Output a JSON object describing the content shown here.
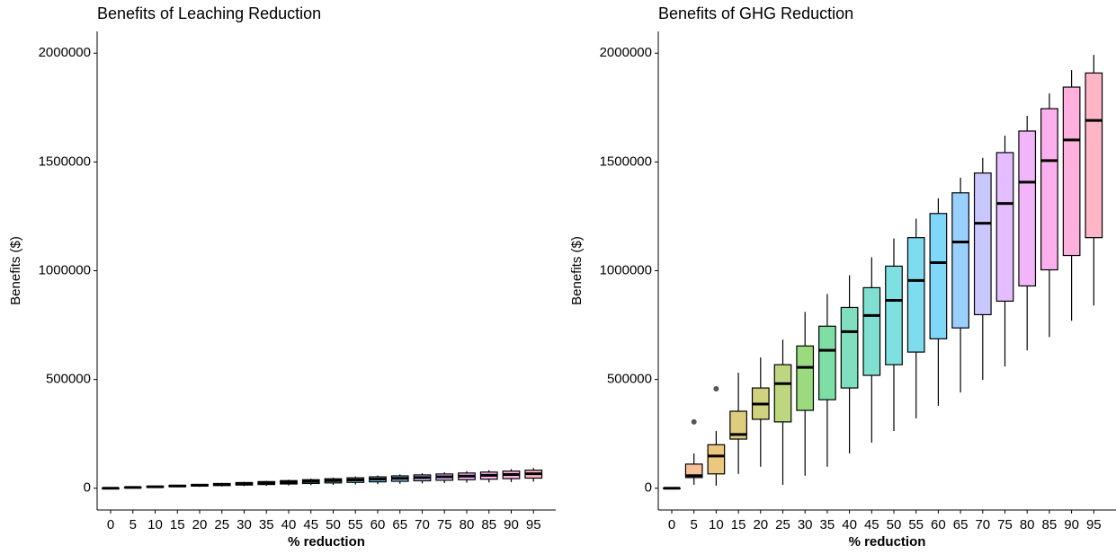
{
  "chart_data": [
    {
      "type": "box",
      "title": "Benefits of Leaching Reduction",
      "x_label": "% reduction",
      "y_label": "Benefits ($)",
      "categories": [
        "0",
        "5",
        "10",
        "15",
        "20",
        "25",
        "30",
        "35",
        "40",
        "45",
        "50",
        "55",
        "60",
        "65",
        "70",
        "75",
        "80",
        "85",
        "90",
        "95"
      ],
      "colors": [
        "#F8766D",
        "#EA8331",
        "#D89000",
        "#C09B00",
        "#A3A500",
        "#7CAE00",
        "#39B600",
        "#00BB4E",
        "#00BF7D",
        "#00C1A3",
        "#00BFC4",
        "#00BAE0",
        "#00B0F6",
        "#35A2FF",
        "#9590FF",
        "#C77CFF",
        "#E76BF3",
        "#FA62DB",
        "#FF62BC",
        "#FF6C91"
      ],
      "whisker_low": [
        0,
        1575,
        3150,
        4725,
        6300,
        7875,
        9450,
        11025,
        12600,
        14175,
        15750,
        17325,
        18900,
        20475,
        22050,
        23625,
        25200,
        26775,
        28350,
        29925
      ],
      "q1": [
        0,
        2450,
        4900,
        7350,
        9800,
        12250,
        14700,
        17150,
        19600,
        22050,
        24500,
        26950,
        29400,
        31850,
        34300,
        36750,
        39200,
        41650,
        44100,
        46550
      ],
      "median": [
        0,
        3500,
        7000,
        10500,
        14000,
        17500,
        21000,
        24500,
        28000,
        31500,
        35000,
        38500,
        42000,
        45500,
        49000,
        52500,
        56000,
        59500,
        63000,
        66500
      ],
      "q3": [
        0,
        4375,
        8750,
        13125,
        17500,
        21875,
        26250,
        30625,
        35000,
        39375,
        43750,
        48125,
        52500,
        56875,
        61250,
        65625,
        70000,
        74375,
        78750,
        83125
      ],
      "whisker_high": [
        0,
        4900,
        9800,
        14700,
        19600,
        24500,
        29400,
        34300,
        39200,
        44100,
        49000,
        53900,
        58800,
        63700,
        68600,
        73500,
        78400,
        83300,
        88200,
        93100
      ],
      "outliers": [
        [],
        [],
        [],
        [],
        [],
        [],
        [],
        [],
        [],
        [],
        [],
        [],
        [],
        [],
        [],
        [],
        [],
        [],
        [],
        []
      ],
      "ylim": [
        -100000,
        2100000
      ],
      "yticks": [
        0,
        500000,
        1000000,
        1500000,
        2000000
      ],
      "grid": false
    },
    {
      "type": "box",
      "title": "Benefits of GHG Reduction",
      "x_label": "% reduction",
      "y_label": "Benefits ($)",
      "categories": [
        "0",
        "5",
        "10",
        "15",
        "20",
        "25",
        "30",
        "35",
        "40",
        "45",
        "50",
        "55",
        "60",
        "65",
        "70",
        "75",
        "80",
        "85",
        "90",
        "95"
      ],
      "colors": [
        "#F8766D",
        "#EA8331",
        "#D89000",
        "#C09B00",
        "#A3A500",
        "#7CAE00",
        "#39B600",
        "#00BB4E",
        "#00BF7D",
        "#00C1A3",
        "#00BFC4",
        "#00BAE0",
        "#00B0F6",
        "#35A2FF",
        "#9590FF",
        "#C77CFF",
        "#E76BF3",
        "#FA62DB",
        "#FF62BC",
        "#FF6C91"
      ],
      "whisker_low": [
        0,
        16000,
        12000,
        66000,
        99000,
        16000,
        58000,
        99000,
        160000,
        210000,
        263000,
        321000,
        379000,
        440000,
        498000,
        560000,
        634000,
        695000,
        770000,
        840000
      ],
      "q1": [
        0,
        49000,
        66000,
        226000,
        317000,
        305000,
        358000,
        407000,
        461000,
        519000,
        568000,
        626000,
        687000,
        737000,
        798000,
        860000,
        930000,
        1004000,
        1070000,
        1152000
      ],
      "median": [
        0,
        58000,
        148000,
        247000,
        387000,
        481000,
        556000,
        634000,
        720000,
        794000,
        864000,
        955000,
        1037000,
        1132000,
        1218000,
        1309000,
        1407000,
        1506000,
        1601000,
        1691000
      ],
      "q3": [
        0,
        111000,
        200000,
        354000,
        461000,
        568000,
        654000,
        745000,
        831000,
        922000,
        1021000,
        1152000,
        1263000,
        1358000,
        1449000,
        1543000,
        1642000,
        1745000,
        1844000,
        1909000
      ],
      "whisker_high": [
        0,
        160000,
        263000,
        531000,
        601000,
        683000,
        811000,
        893000,
        979000,
        1062000,
        1148000,
        1239000,
        1333000,
        1428000,
        1519000,
        1621000,
        1712000,
        1815000,
        1922000,
        1992000
      ],
      "outliers": [
        [],
        [
          305000
        ],
        [
          457000
        ],
        [],
        [],
        [],
        [],
        [],
        [],
        [],
        [],
        [],
        [],
        [],
        [],
        [],
        [],
        [],
        [],
        []
      ],
      "ylim": [
        -100000,
        2100000
      ],
      "yticks": [
        0,
        500000,
        1000000,
        1500000,
        2000000
      ],
      "grid": false
    }
  ]
}
